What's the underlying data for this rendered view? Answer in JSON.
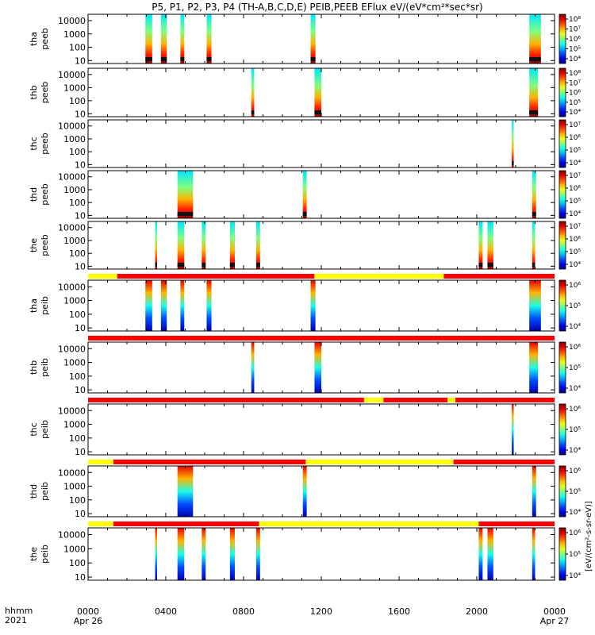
{
  "chart_data": {
    "type": "heatmap",
    "title": "P5, P1, P2, P3, P4 (TH-A,B,C,D,E) PEIB,PEEB EFlux eV/(eV*cm²*sec*sr)",
    "x_axis": {
      "range_hours": [
        0,
        24
      ],
      "ticks": [
        {
          "hour": 0,
          "label": "0000",
          "sublabel": "Apr 26"
        },
        {
          "hour": 4,
          "label": "0400",
          "sublabel": ""
        },
        {
          "hour": 8,
          "label": "0800",
          "sublabel": ""
        },
        {
          "hour": 12,
          "label": "1200",
          "sublabel": ""
        },
        {
          "hour": 16,
          "label": "1600",
          "sublabel": ""
        },
        {
          "hour": 20,
          "label": "2000",
          "sublabel": ""
        },
        {
          "hour": 24,
          "label": "0000",
          "sublabel": "Apr 27"
        }
      ],
      "corner_label_top": "hhmm",
      "corner_label_bottom": "2021"
    },
    "y_axis": {
      "scale": "log",
      "range": [
        6,
        30000
      ],
      "ticks": [
        {
          "value": 10,
          "label": "10"
        },
        {
          "value": 100,
          "label": "100"
        },
        {
          "value": 1000,
          "label": "1000"
        },
        {
          "value": 10000,
          "label": "10000"
        }
      ]
    },
    "colorbar_label": "[eV/(cm²-s-sr-eV)]",
    "panels": [
      {
        "probe": "tha",
        "instrument": "peeb",
        "kind": "electron",
        "colorbar_ticks": [
          "10⁴",
          "10⁵",
          "10⁶",
          "10⁷",
          "10⁸"
        ],
        "bursts": [
          {
            "start": 2.95,
            "end": 3.3
          },
          {
            "start": 3.75,
            "end": 4.05
          },
          {
            "start": 4.75,
            "end": 4.95
          },
          {
            "start": 6.1,
            "end": 6.35
          },
          {
            "start": 11.45,
            "end": 11.7
          },
          {
            "start": 22.7,
            "end": 23.3
          }
        ]
      },
      {
        "probe": "thb",
        "instrument": "peeb",
        "kind": "electron",
        "colorbar_ticks": [
          "10⁴",
          "10⁵",
          "10⁶",
          "10⁷",
          "10⁸"
        ],
        "bursts": [
          {
            "start": 8.4,
            "end": 8.55
          },
          {
            "start": 11.65,
            "end": 12.0
          },
          {
            "start": 22.7,
            "end": 23.15
          }
        ]
      },
      {
        "probe": "thc",
        "instrument": "peeb",
        "kind": "electron",
        "colorbar_ticks": [
          "10⁴",
          "10⁵",
          "10⁶",
          "10⁷"
        ],
        "bursts": [
          {
            "start": 21.8,
            "end": 21.9
          }
        ]
      },
      {
        "probe": "thd",
        "instrument": "peeb",
        "kind": "electron",
        "colorbar_ticks": [
          "10⁴",
          "10⁵",
          "10⁶",
          "10⁷"
        ],
        "bursts": [
          {
            "start": 4.6,
            "end": 5.4
          },
          {
            "start": 11.05,
            "end": 11.25
          },
          {
            "start": 22.85,
            "end": 23.05
          }
        ]
      },
      {
        "probe": "the",
        "instrument": "peeb",
        "kind": "electron",
        "colorbar_ticks": [
          "10⁴",
          "10⁵",
          "10⁶",
          "10⁷"
        ],
        "bursts": [
          {
            "start": 3.45,
            "end": 3.55
          },
          {
            "start": 4.6,
            "end": 4.95
          },
          {
            "start": 5.85,
            "end": 6.05
          },
          {
            "start": 7.3,
            "end": 7.55
          },
          {
            "start": 8.65,
            "end": 8.85
          },
          {
            "start": 20.1,
            "end": 20.3
          },
          {
            "start": 20.55,
            "end": 20.85
          },
          {
            "start": 22.85,
            "end": 23.0
          }
        ]
      },
      {
        "probe": "tha",
        "instrument": "peib",
        "kind": "ion",
        "colorbar_ticks": [
          "10⁴",
          "10⁵",
          "10⁶"
        ],
        "mode_bar": [
          {
            "start": 0,
            "end": 1.5,
            "mode": "fast"
          },
          {
            "start": 1.5,
            "end": 11.65,
            "mode": "slow"
          },
          {
            "start": 11.65,
            "end": 18.3,
            "mode": "fast"
          },
          {
            "start": 18.3,
            "end": 24,
            "mode": "slow"
          }
        ],
        "bursts": [
          {
            "start": 2.95,
            "end": 3.3
          },
          {
            "start": 3.75,
            "end": 4.05
          },
          {
            "start": 4.75,
            "end": 4.95
          },
          {
            "start": 6.1,
            "end": 6.35
          },
          {
            "start": 11.45,
            "end": 11.7
          },
          {
            "start": 22.7,
            "end": 23.3
          }
        ]
      },
      {
        "probe": "thb",
        "instrument": "peib",
        "kind": "ion",
        "colorbar_ticks": [
          "10⁴",
          "10⁵",
          "10⁶"
        ],
        "mode_bar": [
          {
            "start": 0,
            "end": 24,
            "mode": "slow"
          }
        ],
        "bursts": [
          {
            "start": 8.4,
            "end": 8.55
          },
          {
            "start": 11.65,
            "end": 12.0
          },
          {
            "start": 22.7,
            "end": 23.15
          }
        ]
      },
      {
        "probe": "thc",
        "instrument": "peib",
        "kind": "ion",
        "colorbar_ticks": [
          "10⁴",
          "10⁵",
          "10⁶"
        ],
        "mode_bar": [
          {
            "start": 0,
            "end": 14.2,
            "mode": "slow"
          },
          {
            "start": 14.2,
            "end": 15.2,
            "mode": "fast"
          },
          {
            "start": 15.2,
            "end": 18.5,
            "mode": "slow"
          },
          {
            "start": 18.5,
            "end": 18.9,
            "mode": "fast"
          },
          {
            "start": 18.9,
            "end": 24,
            "mode": "slow"
          }
        ],
        "bursts": [
          {
            "start": 21.8,
            "end": 21.9
          }
        ]
      },
      {
        "probe": "thd",
        "instrument": "peib",
        "kind": "ion",
        "colorbar_ticks": [
          "10⁴",
          "10⁵",
          "10⁶"
        ],
        "mode_bar": [
          {
            "start": 0,
            "end": 1.3,
            "mode": "fast"
          },
          {
            "start": 1.3,
            "end": 11.2,
            "mode": "slow"
          },
          {
            "start": 11.2,
            "end": 18.8,
            "mode": "fast"
          },
          {
            "start": 18.8,
            "end": 24,
            "mode": "slow"
          }
        ],
        "bursts": [
          {
            "start": 4.6,
            "end": 5.4
          },
          {
            "start": 11.05,
            "end": 11.25
          },
          {
            "start": 22.85,
            "end": 23.05
          }
        ]
      },
      {
        "probe": "the",
        "instrument": "peib",
        "kind": "ion",
        "colorbar_ticks": [
          "10⁴",
          "10⁵",
          "10⁶"
        ],
        "mode_bar": [
          {
            "start": 0,
            "end": 1.3,
            "mode": "fast"
          },
          {
            "start": 1.3,
            "end": 8.8,
            "mode": "slow"
          },
          {
            "start": 8.8,
            "end": 20.1,
            "mode": "fast"
          },
          {
            "start": 20.1,
            "end": 24,
            "mode": "slow"
          }
        ],
        "bursts": [
          {
            "start": 3.45,
            "end": 3.55
          },
          {
            "start": 4.6,
            "end": 4.95
          },
          {
            "start": 5.85,
            "end": 6.05
          },
          {
            "start": 7.3,
            "end": 7.55
          },
          {
            "start": 8.65,
            "end": 8.85
          },
          {
            "start": 20.1,
            "end": 20.3
          },
          {
            "start": 20.55,
            "end": 20.85
          },
          {
            "start": 22.85,
            "end": 23.0
          }
        ]
      }
    ],
    "colors": {
      "mode_fast": "#ffff00",
      "mode_slow": "#ff0000",
      "axis": "#000000"
    }
  }
}
